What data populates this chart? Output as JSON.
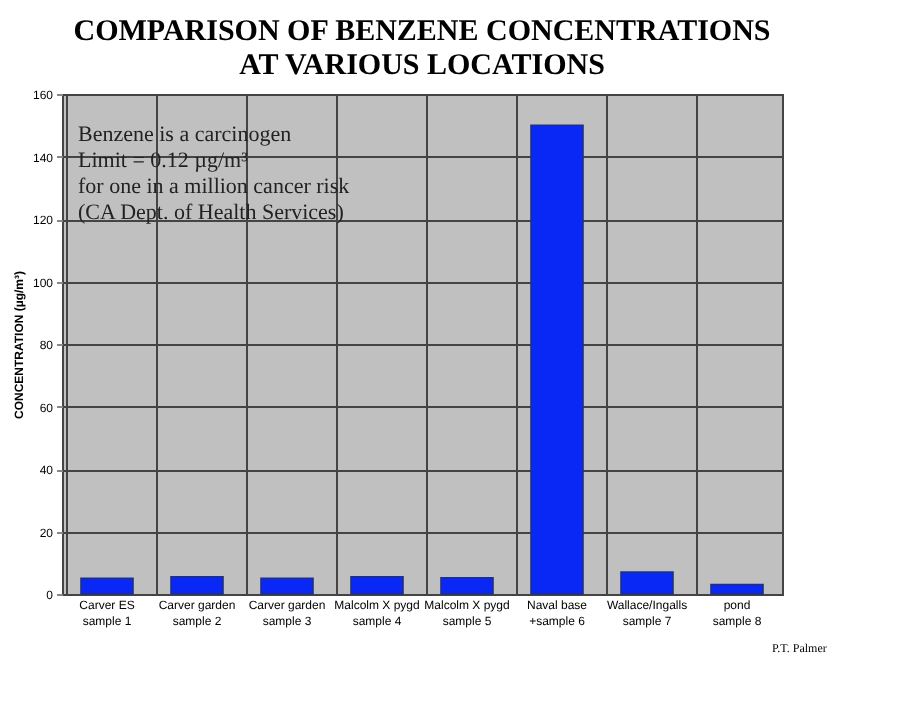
{
  "chart_data": {
    "type": "bar",
    "title": [
      "COMPARISON OF BENZENE CONCENTRATIONS",
      "AT VARIOUS LOCATIONS"
    ],
    "ylabel": "CONCENTRATION (µg/m³)",
    "categories": [
      "Carver ES\nsample 1",
      "Carver garden\nsample 2",
      "Carver garden\nsample 3",
      "Malcolm X pygd\nsample 4",
      "Malcolm X pygd\nsample 5",
      "Naval base\n+sample 6",
      "Wallace/Ingalls\nsample 7",
      "pond\nsample 8"
    ],
    "values": [
      5,
      5.5,
      5,
      5.5,
      5.2,
      150,
      7,
      3
    ],
    "color": "#0a28f5",
    "ylim": [
      0,
      160
    ],
    "yticks": [
      0,
      20,
      40,
      60,
      80,
      100,
      120,
      140,
      160
    ],
    "grid": true,
    "annotations": [
      "Benzene is a carcinogen",
      "Limit = 0.12 µg/m³",
      "for one in a million cancer risk",
      "(CA Dept. of Health Services)",
      "P.T. Palmer"
    ]
  }
}
